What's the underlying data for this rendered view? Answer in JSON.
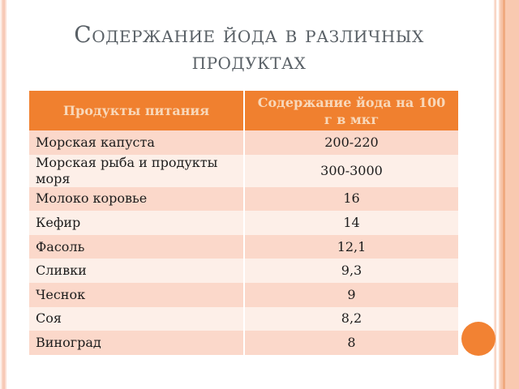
{
  "slide": {
    "title": "Содержание йода в различных продуктах"
  },
  "table": {
    "columns": [
      "Продукты питания",
      "Содержание йода на 100 г в мкг"
    ],
    "rows": [
      [
        "Морская капуста",
        "200-220"
      ],
      [
        "Морская рыба и продукты моря",
        "300-3000"
      ],
      [
        "Молоко коровье",
        "16"
      ],
      [
        "Кефир",
        "14"
      ],
      [
        "Фасоль",
        "12,1"
      ],
      [
        "Сливки",
        "9,3"
      ],
      [
        "Чеснок",
        "9"
      ],
      [
        "Соя",
        "8,2"
      ],
      [
        "Виноград",
        "8"
      ]
    ]
  },
  "colors": {
    "header_bg": "#F0802F",
    "header_text": "#F8D8BA",
    "row_odd": "#FBD8CA",
    "row_even": "#FDEFE8",
    "title_text": "#596066",
    "accent_circle": "#F28233"
  },
  "decorations": {
    "circle": "orange-circle",
    "left_border": "striped-peach-band",
    "right_border": "striped-peach-band"
  }
}
